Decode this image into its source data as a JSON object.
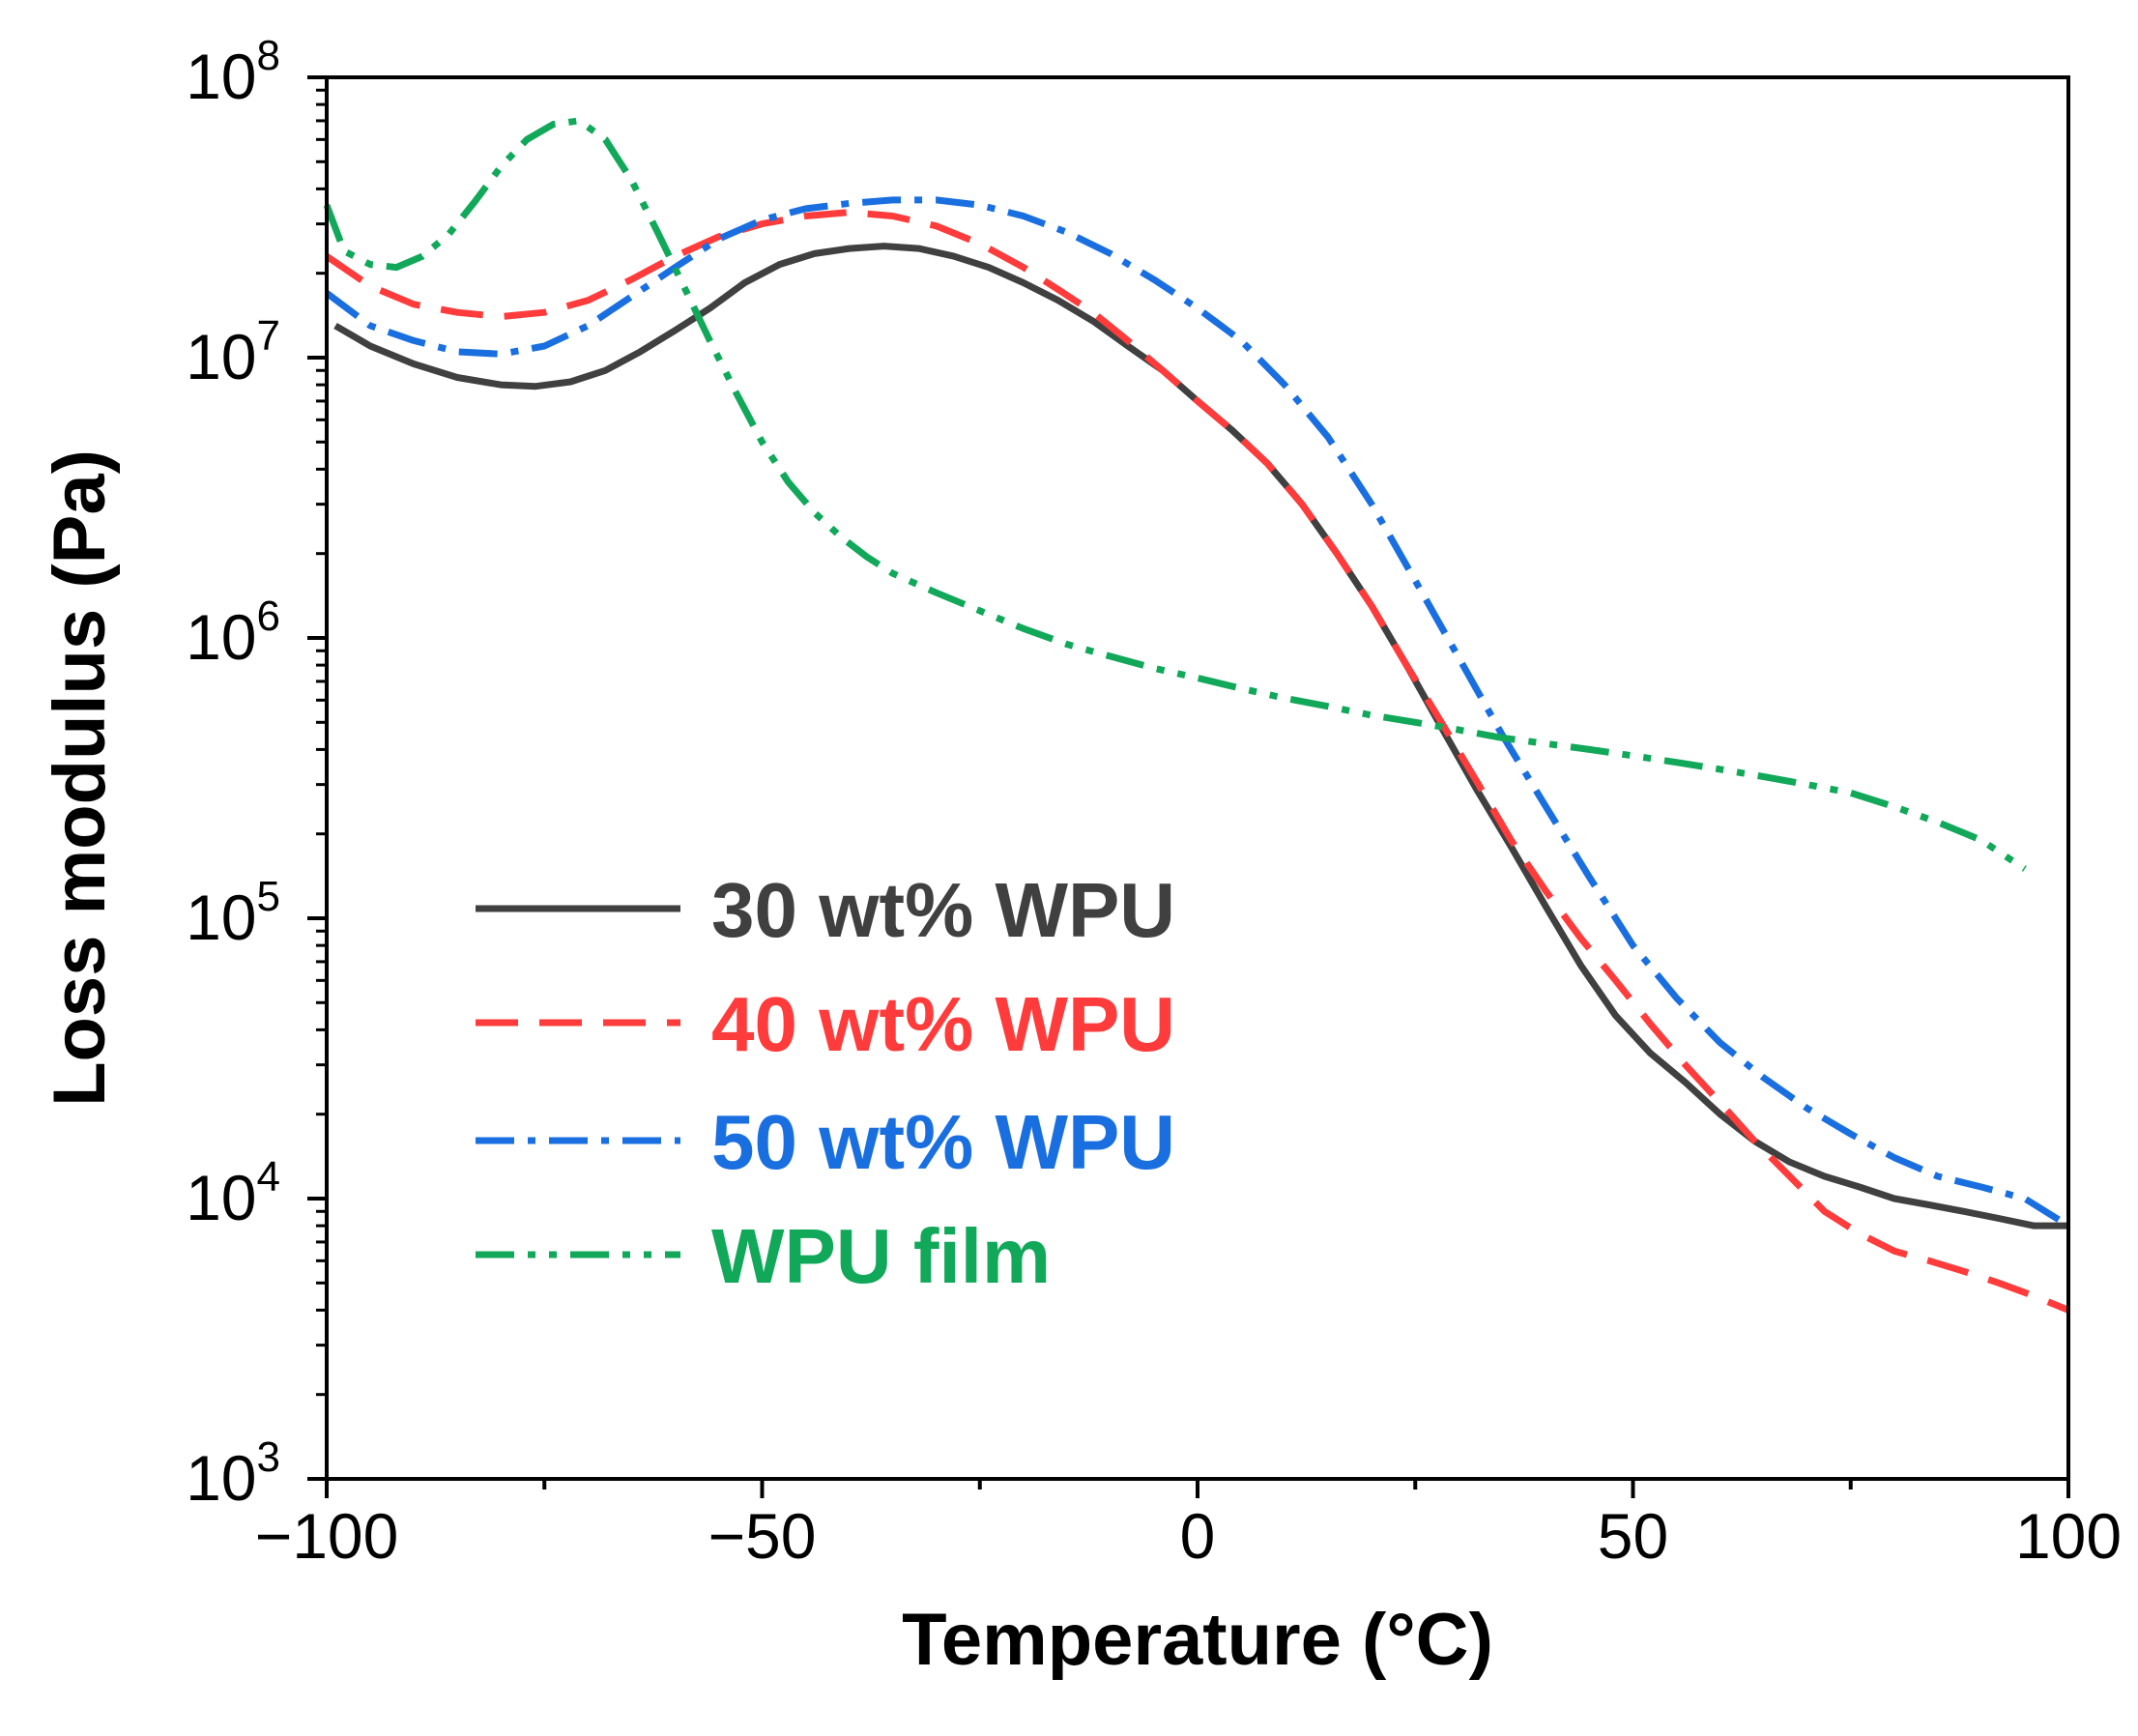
{
  "chart_data": {
    "type": "line",
    "title": "",
    "xlabel": "Temperature (°C)",
    "ylabel": "Loss modulus (Pa)",
    "xlim": [
      -100,
      100
    ],
    "ylim": [
      1000,
      100000000
    ],
    "yscale": "log",
    "x_ticks": [
      -100,
      -50,
      0,
      50,
      100
    ],
    "x_tick_labels": [
      "−100",
      "−50",
      "0",
      "50",
      "100"
    ],
    "y_ticks": [
      1000,
      10000,
      100000,
      1000000,
      10000000,
      100000000
    ],
    "y_tick_labels": [
      {
        "base": "10",
        "exp": "3"
      },
      {
        "base": "10",
        "exp": "4"
      },
      {
        "base": "10",
        "exp": "5"
      },
      {
        "base": "10",
        "exp": "6"
      },
      {
        "base": "10",
        "exp": "7"
      },
      {
        "base": "10",
        "exp": "8"
      }
    ],
    "legend_position": "lower-left",
    "series": [
      {
        "name": "30 wt% WPU",
        "color": "#404040",
        "dash": "solid",
        "x": [
          -99,
          -95,
          -90,
          -85,
          -80,
          -76,
          -72,
          -68,
          -64,
          -60,
          -56,
          -52,
          -48,
          -44,
          -40,
          -36,
          -32,
          -28,
          -24,
          -20,
          -16,
          -12,
          -8,
          -4,
          0,
          4,
          8,
          12,
          16,
          20,
          24,
          28,
          32,
          36,
          40,
          44,
          48,
          52,
          56,
          60,
          64,
          68,
          72,
          76,
          80,
          84,
          88,
          92,
          96,
          100
        ],
        "y": [
          13000000,
          11000000,
          9500000,
          8500000,
          8000000,
          7900000,
          8200000,
          9000000,
          10500000,
          12500000,
          15000000,
          18500000,
          21500000,
          23500000,
          24500000,
          25000000,
          24500000,
          23000000,
          21000000,
          18500000,
          16000000,
          13500000,
          11000000,
          9000000,
          7000000,
          5500000,
          4200000,
          3000000,
          2000000,
          1300000,
          800000,
          480000,
          290000,
          180000,
          110000,
          68000,
          45000,
          33000,
          26000,
          20000,
          16000,
          13500,
          12000,
          11000,
          10000,
          9500,
          9000,
          8500,
          8000,
          8000
        ]
      },
      {
        "name": "40 wt% WPU",
        "color": "#ff3b3b",
        "dash": "dashed",
        "x": [
          -100,
          -95,
          -90,
          -85,
          -80,
          -75,
          -70,
          -65,
          -60,
          -55,
          -50,
          -45,
          -40,
          -35,
          -30,
          -25,
          -20,
          -16,
          -12,
          -8,
          -4,
          0,
          4,
          8,
          12,
          16,
          20,
          24,
          28,
          32,
          36,
          40,
          44,
          48,
          52,
          56,
          60,
          64,
          68,
          72,
          76,
          80,
          84,
          88,
          92,
          96,
          100
        ],
        "y": [
          23000000,
          18000000,
          15500000,
          14500000,
          14000000,
          14500000,
          16000000,
          19000000,
          23000000,
          27000000,
          30000000,
          32000000,
          33000000,
          32000000,
          29500000,
          25500000,
          21000000,
          17500000,
          14500000,
          11500000,
          9000000,
          7000000,
          5500000,
          4200000,
          3000000,
          2000000,
          1300000,
          800000,
          500000,
          310000,
          190000,
          125000,
          85000,
          60000,
          42000,
          30000,
          22000,
          16000,
          12000,
          9000,
          7500,
          6500,
          6000,
          5500,
          5000,
          4500,
          4000
        ]
      },
      {
        "name": "50 wt% WPU",
        "color": "#1a6fe0",
        "dash": "dashdot",
        "x": [
          -100,
          -95,
          -90,
          -85,
          -80,
          -75,
          -70,
          -65,
          -60,
          -55,
          -50,
          -45,
          -40,
          -35,
          -30,
          -25,
          -20,
          -15,
          -10,
          -5,
          0,
          5,
          10,
          15,
          20,
          25,
          30,
          35,
          40,
          45,
          50,
          55,
          60,
          65,
          70,
          75,
          80,
          85,
          90,
          95,
          100
        ],
        "y": [
          17000000,
          13000000,
          11500000,
          10500000,
          10300000,
          11000000,
          13000000,
          16500000,
          21000000,
          26500000,
          31000000,
          34000000,
          35500000,
          36500000,
          36500000,
          35000000,
          32000000,
          28000000,
          23500000,
          19000000,
          15000000,
          11500000,
          8000000,
          5200000,
          3000000,
          1600000,
          850000,
          450000,
          250000,
          140000,
          80000,
          52000,
          36000,
          27000,
          21000,
          17000,
          14000,
          12000,
          11000,
          10000,
          8000
        ]
      },
      {
        "name": "WPU film",
        "color": "#11a85a",
        "dash": "dashdotdot",
        "x": [
          -100,
          -98,
          -95,
          -92,
          -89,
          -86,
          -83,
          -80,
          -77,
          -74,
          -71,
          -68,
          -65,
          -62,
          -59,
          -56,
          -53,
          -50,
          -47,
          -44,
          -41,
          -38,
          -35,
          -30,
          -25,
          -20,
          -15,
          -10,
          -5,
          0,
          5,
          10,
          15,
          20,
          25,
          30,
          35,
          40,
          45,
          50,
          55,
          60,
          65,
          70,
          75,
          80,
          85,
          90,
          95
        ],
        "y": [
          35000000,
          24000000,
          21500000,
          21000000,
          23000000,
          27500000,
          36000000,
          48000000,
          60000000,
          68000000,
          70000000,
          60000000,
          43000000,
          28000000,
          18000000,
          11500000,
          7500000,
          5000000,
          3600000,
          2800000,
          2300000,
          1950000,
          1700000,
          1450000,
          1250000,
          1080000,
          950000,
          860000,
          780000,
          720000,
          660000,
          610000,
          570000,
          530000,
          500000,
          470000,
          440000,
          420000,
          400000,
          380000,
          360000,
          340000,
          320000,
          300000,
          280000,
          250000,
          220000,
          190000,
          150000
        ]
      }
    ]
  }
}
